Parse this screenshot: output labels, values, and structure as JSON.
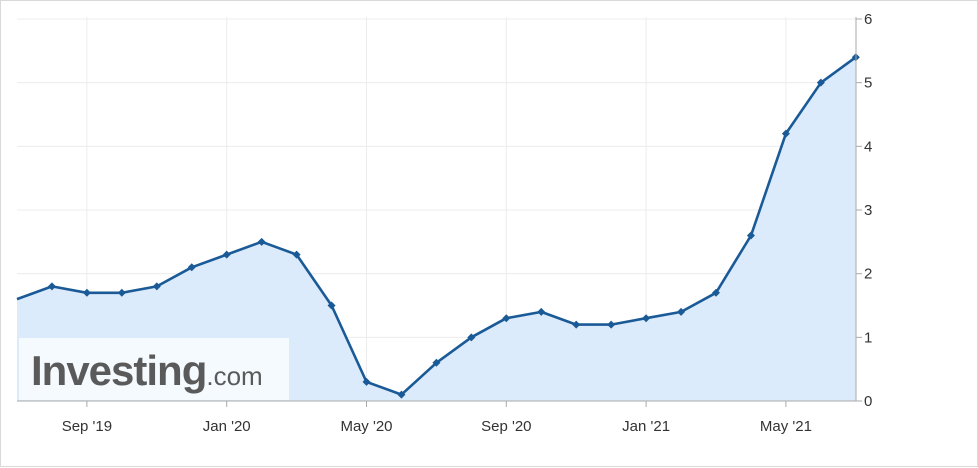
{
  "watermark": {
    "brand": "Investing",
    "suffix": ".com",
    "brand_color": "#5a5a5a",
    "accent_color": "#f5a623"
  },
  "colors": {
    "line": "#1a5a96",
    "fill": "#dcebfb",
    "grid": "#ececec",
    "axis": "#aaaaaa"
  },
  "chart_data": {
    "type": "area",
    "x": [
      "2019-07",
      "2019-08",
      "2019-09",
      "2019-10",
      "2019-11",
      "2019-12",
      "2020-01",
      "2020-02",
      "2020-03",
      "2020-04",
      "2020-05",
      "2020-06",
      "2020-07",
      "2020-08",
      "2020-09",
      "2020-10",
      "2020-11",
      "2020-12",
      "2021-01",
      "2021-02",
      "2021-03",
      "2021-04",
      "2021-05",
      "2021-06",
      "2021-07"
    ],
    "series": [
      {
        "values": [
          1.6,
          1.8,
          1.7,
          1.7,
          1.8,
          2.1,
          2.3,
          2.5,
          2.3,
          1.5,
          0.3,
          0.1,
          0.6,
          1.0,
          1.3,
          1.4,
          1.2,
          1.2,
          1.3,
          1.4,
          1.7,
          2.6,
          4.2,
          5.0,
          5.4
        ]
      }
    ],
    "x_tick_labels": [
      "Sep '19",
      "Jan '20",
      "May '20",
      "Sep '20",
      "Jan '21",
      "May '21"
    ],
    "x_tick_positions": [
      "2019-09",
      "2020-01",
      "2020-05",
      "2020-09",
      "2021-01",
      "2021-05"
    ],
    "y_ticks": [
      "0",
      "1",
      "2",
      "3",
      "4",
      "5",
      "6"
    ],
    "ylim": [
      0,
      6
    ],
    "y_axis_side": "right",
    "grid": true,
    "title": "",
    "xlabel": "",
    "ylabel": ""
  }
}
